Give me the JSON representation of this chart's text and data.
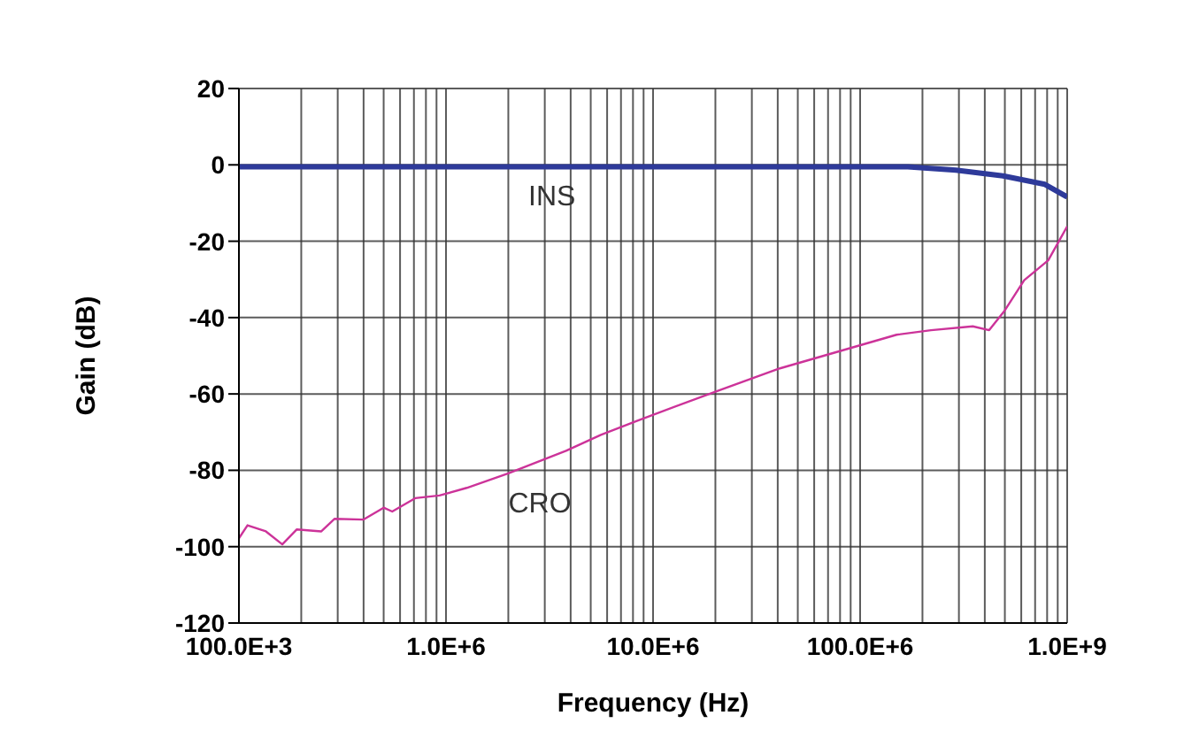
{
  "chart_data": {
    "type": "line",
    "xlabel": "Frequency (Hz)",
    "ylabel": "Gain (dB)",
    "log": "x",
    "grid": true,
    "xlim": [
      100000,
      1000000000
    ],
    "ylim": [
      -120,
      20
    ],
    "yticks": [
      -120,
      -100,
      -80,
      -60,
      -40,
      -20,
      0,
      20
    ],
    "xticks": [
      {
        "value": 100000,
        "label": "100.0E+3"
      },
      {
        "value": 200000,
        "label": null
      },
      {
        "value": 300000,
        "label": null
      },
      {
        "value": 400000,
        "label": null
      },
      {
        "value": 500000,
        "label": null
      },
      {
        "value": 600000,
        "label": null
      },
      {
        "value": 700000,
        "label": null
      },
      {
        "value": 800000,
        "label": null
      },
      {
        "value": 900000,
        "label": null
      },
      {
        "value": 1000000,
        "label": "1.0E+6"
      },
      {
        "value": 2000000,
        "label": null
      },
      {
        "value": 3000000,
        "label": null
      },
      {
        "value": 4000000,
        "label": null
      },
      {
        "value": 5000000,
        "label": null
      },
      {
        "value": 6000000,
        "label": null
      },
      {
        "value": 7000000,
        "label": null
      },
      {
        "value": 8000000,
        "label": null
      },
      {
        "value": 9000000,
        "label": null
      },
      {
        "value": 10000000,
        "label": "10.0E+6"
      },
      {
        "value": 20000000,
        "label": null
      },
      {
        "value": 30000000,
        "label": null
      },
      {
        "value": 40000000,
        "label": null
      },
      {
        "value": 50000000,
        "label": null
      },
      {
        "value": 60000000,
        "label": null
      },
      {
        "value": 70000000,
        "label": null
      },
      {
        "value": 80000000,
        "label": null
      },
      {
        "value": 90000000,
        "label": null
      },
      {
        "value": 100000000,
        "label": "100.0E+6"
      },
      {
        "value": 200000000,
        "label": null
      },
      {
        "value": 300000000,
        "label": null
      },
      {
        "value": 400000000,
        "label": null
      },
      {
        "value": 500000000,
        "label": null
      },
      {
        "value": 600000000,
        "label": null
      },
      {
        "value": 700000000,
        "label": null
      },
      {
        "value": 800000000,
        "label": null
      },
      {
        "value": 900000000,
        "label": null
      },
      {
        "value": 1000000000,
        "label": "1.0E+9"
      }
    ],
    "series": [
      {
        "name": "INS",
        "color": "#2e3a9a",
        "x": [
          100000,
          1000000,
          2500000,
          10000000,
          100000000,
          170000000,
          290000000,
          490000000,
          780000000,
          1000000000
        ],
        "values": [
          -0.5,
          -0.5,
          -0.5,
          -0.5,
          -0.5,
          -0.5,
          -1.4,
          -2.9,
          -5.1,
          -8.4
        ]
      },
      {
        "name": "CRO",
        "color": "#cc3399",
        "x": [
          100000,
          110000,
          135000,
          162000,
          190000,
          250000,
          290000,
          400000,
          500000,
          550000,
          710000,
          930000,
          1260000,
          2000000,
          3800000,
          5600000,
          8300000,
          20000000,
          41000000,
          150000000,
          220000000,
          350000000,
          420000000,
          500000000,
          620000000,
          810000000,
          1000000000
        ],
        "values": [
          -97.8,
          -94.4,
          -96,
          -99.4,
          -95.5,
          -96,
          -92.7,
          -92.9,
          -89.8,
          -90.8,
          -87.3,
          -86.6,
          -84.6,
          -80.8,
          -74.9,
          -70.7,
          -67.1,
          -59.4,
          -53.3,
          -44.5,
          -43.3,
          -42.3,
          -43.3,
          -38.1,
          -30.2,
          -25,
          -16.1
        ]
      }
    ]
  }
}
